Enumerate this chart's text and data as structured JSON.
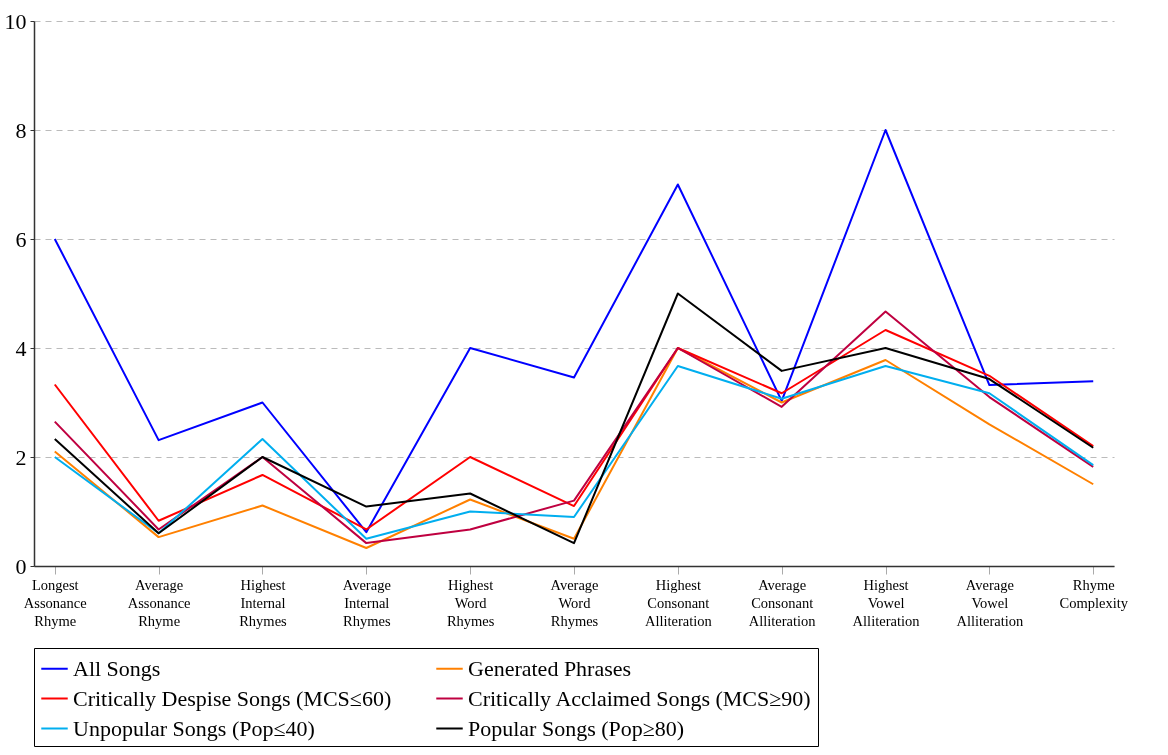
{
  "chart_data": {
    "type": "line",
    "categories": [
      "Longest Assonance Rhyme",
      "Average Assonance Rhyme",
      "Highest Internal Rhymes",
      "Average Internal Rhymes",
      "Highest Word Rhymes",
      "Average Word Rhymes",
      "Highest Consonant Alliteration",
      "Average Consonant Alliteration",
      "Highest Vowel Alliteration",
      "Average Vowel Alliteration",
      "Rhyme Complexity"
    ],
    "series": [
      {
        "name": "All Songs",
        "color": "#0000ff",
        "values": [
          6.0,
          2.31,
          3.0,
          0.62,
          4.0,
          3.46,
          7.0,
          3.03,
          8.0,
          3.32,
          3.39
        ]
      },
      {
        "name": "Generated Phrases",
        "color": "#ff8000",
        "values": [
          2.1,
          0.53,
          1.11,
          0.33,
          1.22,
          0.5,
          4.0,
          3.0,
          3.78,
          2.6,
          1.5
        ]
      },
      {
        "name": "Critically Despise Songs (MCS≤60)",
        "color": "#ff0000",
        "values": [
          3.33,
          0.83,
          1.67,
          0.67,
          2.0,
          1.1,
          4.0,
          3.17,
          4.33,
          3.49,
          2.2
        ]
      },
      {
        "name": "Critically Acclaimed Songs (MCS≥90)",
        "color": "#bf0040",
        "values": [
          2.65,
          0.67,
          2.0,
          0.42,
          0.67,
          1.2,
          4.0,
          2.92,
          4.67,
          3.1,
          1.82
        ]
      },
      {
        "name": "Unpopular Songs (Pop≤40)",
        "color": "#00aeef",
        "values": [
          2.0,
          0.6,
          2.33,
          0.5,
          1.0,
          0.9,
          3.67,
          3.07,
          3.67,
          3.17,
          1.85
        ]
      },
      {
        "name": "Popular Songs (Pop≥80)",
        "color": "#000000",
        "values": [
          2.33,
          0.6,
          2.0,
          1.09,
          1.33,
          0.42,
          5.0,
          3.58,
          4.0,
          3.43,
          2.17
        ]
      }
    ],
    "ylim": [
      0,
      10
    ],
    "yticks": [
      0,
      2,
      4,
      6,
      8,
      10
    ],
    "grid": "y",
    "legend": "bottom"
  }
}
